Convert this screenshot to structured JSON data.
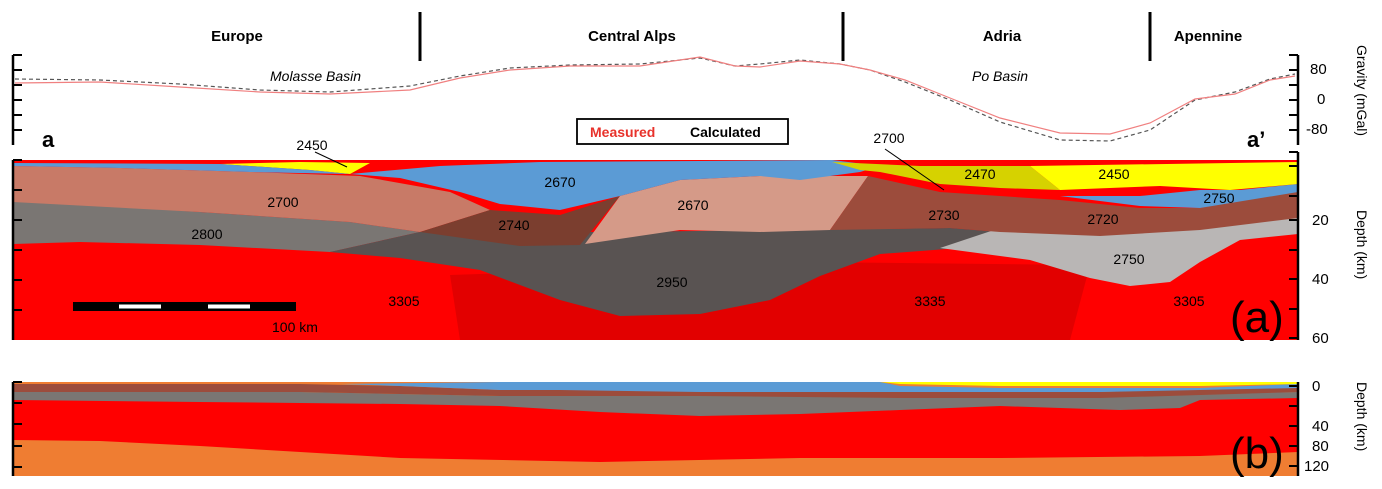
{
  "regions": [
    "Europe",
    "Central Alps",
    "Adria",
    "Apennine"
  ],
  "basins": [
    "Molasse Basin",
    "Po Basin"
  ],
  "legend": {
    "measured": "Measured",
    "calculated": "Calculated",
    "measured_color": "#e8322b",
    "calculated_color": "#000000"
  },
  "profile_ends": {
    "start": "a",
    "end": "a’"
  },
  "gravity_axis": {
    "label": "Gravity (mGal)",
    "ticks": [
      "80",
      "0",
      "-80"
    ]
  },
  "depth_axis_a": {
    "label": "Depth (km)",
    "ticks": [
      "20",
      "40",
      "60"
    ]
  },
  "depth_axis_b": {
    "label": "Depth (km)",
    "ticks": [
      "0",
      "40",
      "80",
      "120"
    ]
  },
  "densities": {
    "sed_left": "2450",
    "upper_left": "2670",
    "upper_crust_left": "2700",
    "lower_crust_left": "2800",
    "mid_crust": "2740",
    "central": "2670",
    "ivrea_top": "2700",
    "po_sed": "2470",
    "po_sed_right": "2450",
    "adria_upper": "2730",
    "adria_mid": "2720",
    "adria_right": "2750",
    "lower_right": "2750",
    "lower_center": "2950",
    "mantle_left": "3305",
    "mantle_center": "3335",
    "mantle_right": "3305"
  },
  "scale_bar": {
    "label": "100 km"
  },
  "panels": {
    "a": "(a)",
    "b": "(b)"
  },
  "colors": {
    "sediment": "#ffff00",
    "po_sediment": "#d6d200",
    "upper_crust_blue": "#5b9bd5",
    "upper_crust_brown": "#c87a67",
    "lower_crust_grey": "#7a7673",
    "mid_crust_dark": "#7b3e2f",
    "central_pink": "#d59a88",
    "adria_brown": "#9c4c3c",
    "lower_center": "#595352",
    "lower_right": "#b9b6b5",
    "mantle_red": "#ff0000",
    "mantle_dark_red": "#e20000",
    "asthenosphere": "#ef7d32"
  }
}
